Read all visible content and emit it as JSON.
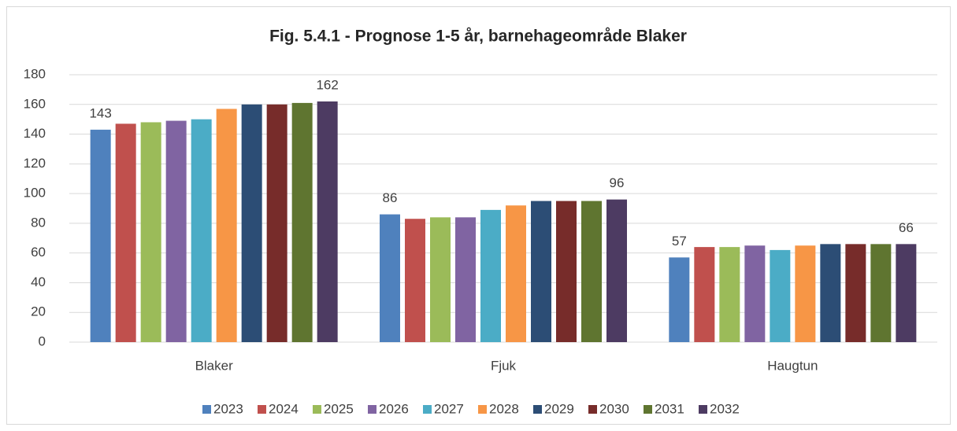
{
  "chart_data": {
    "type": "bar",
    "title": "Fig. 5.4.1 - Prognose 1-5 år, barnehageområde Blaker",
    "categories": [
      "Blaker",
      "Fjuk",
      "Haugtun"
    ],
    "series": [
      {
        "name": "2023",
        "color": "#4f81bd",
        "values": [
          143,
          86,
          57
        ],
        "show_labels": true
      },
      {
        "name": "2024",
        "color": "#c0504d",
        "values": [
          147,
          83,
          64
        ]
      },
      {
        "name": "2025",
        "color": "#9bbb59",
        "values": [
          148,
          84,
          64
        ]
      },
      {
        "name": "2026",
        "color": "#8064a2",
        "values": [
          149,
          84,
          65
        ]
      },
      {
        "name": "2027",
        "color": "#4bacc6",
        "values": [
          150,
          89,
          62
        ]
      },
      {
        "name": "2028",
        "color": "#f79646",
        "values": [
          157,
          92,
          65
        ]
      },
      {
        "name": "2029",
        "color": "#2c4d75",
        "values": [
          160,
          95,
          66
        ]
      },
      {
        "name": "2030",
        "color": "#772c2a",
        "values": [
          160,
          95,
          66
        ]
      },
      {
        "name": "2031",
        "color": "#5f7530",
        "values": [
          161,
          95,
          66
        ]
      },
      {
        "name": "2032",
        "color": "#4d3b62",
        "values": [
          162,
          96,
          66
        ],
        "show_labels": true
      }
    ],
    "ylim": [
      0,
      180
    ],
    "yticks": [
      0,
      20,
      40,
      60,
      80,
      100,
      120,
      140,
      160,
      180
    ],
    "grid": true,
    "legend": "bottom"
  }
}
